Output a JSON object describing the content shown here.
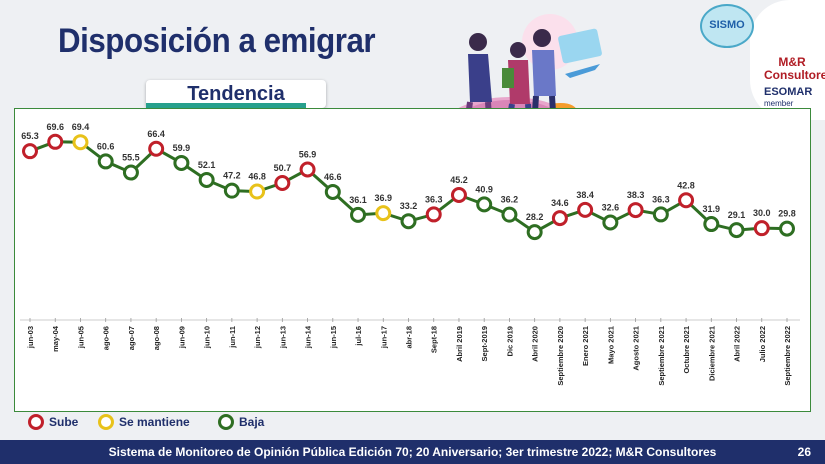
{
  "title": "Disposición a emigrar",
  "subtitle": "Tendencia",
  "logos": {
    "sismo": "SISMO",
    "mr": "M&R Consultores",
    "esomar": "ESOMAR",
    "member": "member"
  },
  "legend": [
    {
      "label": "Sube",
      "color": "#c0202a"
    },
    {
      "label": "Se mantiene",
      "color": "#e8c21a"
    },
    {
      "label": "Baja",
      "color": "#2e6e22"
    }
  ],
  "footer": {
    "text": "Sistema de Monitoreo de Opinión Pública Edición 70; 20 Aniversario; 3er trimestre 2022; M&R Consultores",
    "page": "26"
  },
  "chart_data": {
    "type": "line",
    "categories": [
      "jun-03",
      "may-04",
      "jun-05",
      "ago-06",
      "ago-07",
      "ago-08",
      "jun-09",
      "jun-10",
      "jun-11",
      "jun-12",
      "jun-13",
      "jun-14",
      "jun-15",
      "jul-16",
      "jun-17",
      "abr-18",
      "Sept-18",
      "Abril 2019",
      "Sept-2019",
      "Dic 2019",
      "Abril 2020",
      "Septiembre 2020",
      "Enero 2021",
      "Mayo 2021",
      "Agosto 2021",
      "Septiembre 2021",
      "Octubre 2021",
      "Diciembre 2021",
      "Abril 2022",
      "Julio 2022",
      "Septiembre 2022"
    ],
    "values": [
      65.3,
      69.6,
      69.4,
      60.6,
      55.5,
      66.4,
      59.9,
      52.1,
      47.2,
      46.8,
      50.7,
      56.9,
      46.6,
      36.1,
      36.9,
      33.2,
      36.3,
      45.2,
      40.9,
      36.2,
      28.2,
      34.6,
      38.4,
      32.6,
      38.3,
      36.3,
      42.8,
      31.9,
      29.1,
      30.0,
      29.8
    ],
    "labels": [
      "65.3",
      "69.6",
      "69.4",
      "60.6",
      "55.5",
      "66.4",
      "59.9",
      "52.1",
      "47.2",
      "46.8",
      "50.7",
      "56.9",
      "46.6",
      "36.1",
      "36.9",
      "33.2",
      "36.3",
      "45.2",
      "40.9",
      "36.2",
      "28.2",
      "34.6",
      "38.4",
      "32.6",
      "38.3",
      "36.3",
      "42.8",
      "31.9",
      "29.1",
      "30.0",
      "29.8"
    ],
    "status": [
      "sube",
      "sube",
      "se_mantiene",
      "baja",
      "baja",
      "sube",
      "baja",
      "baja",
      "baja",
      "se_mantiene",
      "sube",
      "sube",
      "baja",
      "baja",
      "se_mantiene",
      "baja",
      "sube",
      "sube",
      "baja",
      "baja",
      "baja",
      "sube",
      "sube",
      "baja",
      "sube",
      "baja",
      "sube",
      "baja",
      "baja",
      "sube",
      "baja"
    ],
    "colors": {
      "sube": "#c0202a",
      "se_mantiene": "#e8c21a",
      "baja": "#2e6e22"
    },
    "line_color": "#2e6e22",
    "ylim": [
      20,
      75
    ],
    "grid": false
  }
}
